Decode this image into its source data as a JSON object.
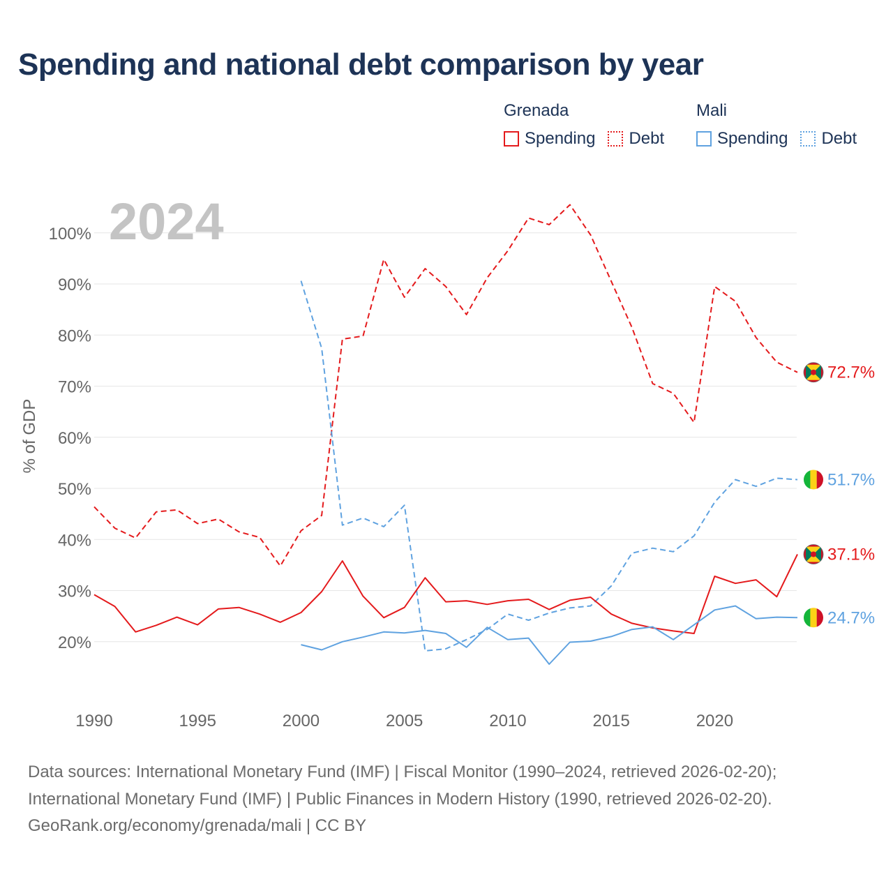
{
  "title": "Spending and national debt comparison by year",
  "legend": {
    "groups": [
      {
        "country": "Grenada",
        "color": "#e41a1c",
        "items": [
          {
            "label": "Spending",
            "style": "solid"
          },
          {
            "label": "Debt",
            "style": "dotted"
          }
        ]
      },
      {
        "country": "Mali",
        "color": "#5fa2e0",
        "items": [
          {
            "label": "Spending",
            "style": "solid"
          },
          {
            "label": "Debt",
            "style": "dotted"
          }
        ]
      }
    ]
  },
  "year_watermark": "2024",
  "footer": {
    "line1": "Data sources: International Monetary Fund (IMF) | Fiscal Monitor (1990–2024, retrieved 2026-02-20);",
    "line2": "International Monetary Fund (IMF) | Public Finances in Modern History (1990, retrieved 2026-02-20).",
    "line3": "GeoRank.org/economy/grenada/mali | CC BY"
  },
  "chart_data": {
    "type": "line",
    "title": "Spending and national debt comparison by year",
    "xlabel": "",
    "ylabel": "% of GDP",
    "xlim": [
      1990,
      2024
    ],
    "ylim": [
      10,
      105
    ],
    "x_ticks": [
      1990,
      1995,
      2000,
      2005,
      2010,
      2015,
      2020
    ],
    "y_ticks": [
      20,
      30,
      40,
      50,
      60,
      70,
      80,
      90,
      100
    ],
    "y_tick_labels": [
      "20%",
      "30%",
      "40%",
      "50%",
      "60%",
      "70%",
      "80%",
      "90%",
      "100%"
    ],
    "grid": true,
    "series": [
      {
        "name": "Grenada Debt",
        "country": "Grenada",
        "measure": "Debt",
        "color": "#e41a1c",
        "dash": "dashed",
        "end_label": "72.7%",
        "end_flag": "grenada-flag",
        "points": [
          [
            1990,
            46.4
          ],
          [
            1991,
            42.2
          ],
          [
            1992,
            40.3
          ],
          [
            1993,
            45.4
          ],
          [
            1994,
            45.8
          ],
          [
            1995,
            43.1
          ],
          [
            1996,
            44.0
          ],
          [
            1997,
            41.5
          ],
          [
            1998,
            40.4
          ],
          [
            1999,
            34.8
          ],
          [
            2000,
            41.7
          ],
          [
            2001,
            44.7
          ],
          [
            2002,
            79.2
          ],
          [
            2003,
            79.8
          ],
          [
            2004,
            94.8
          ],
          [
            2005,
            87.4
          ],
          [
            2006,
            93.0
          ],
          [
            2007,
            89.5
          ],
          [
            2008,
            84.0
          ],
          [
            2009,
            91.2
          ],
          [
            2010,
            96.5
          ],
          [
            2011,
            102.9
          ],
          [
            2012,
            101.6
          ],
          [
            2013,
            105.5
          ],
          [
            2014,
            99.6
          ],
          [
            2015,
            90.5
          ],
          [
            2016,
            81.5
          ],
          [
            2017,
            70.5
          ],
          [
            2018,
            68.6
          ],
          [
            2019,
            62.9
          ],
          [
            2020,
            89.5
          ],
          [
            2021,
            86.6
          ],
          [
            2022,
            79.5
          ],
          [
            2023,
            74.7
          ],
          [
            2024,
            72.7
          ]
        ]
      },
      {
        "name": "Mali Debt",
        "country": "Mali",
        "measure": "Debt",
        "color": "#5fa2e0",
        "dash": "dashed",
        "end_label": "51.7%",
        "end_flag": "mali-flag",
        "points": [
          [
            2000,
            90.6
          ],
          [
            2001,
            77.4
          ],
          [
            2002,
            42.8
          ],
          [
            2003,
            44.2
          ],
          [
            2004,
            42.5
          ],
          [
            2005,
            46.7
          ],
          [
            2006,
            18.2
          ],
          [
            2007,
            18.6
          ],
          [
            2008,
            20.4
          ],
          [
            2009,
            22.4
          ],
          [
            2010,
            25.4
          ],
          [
            2011,
            24.2
          ],
          [
            2012,
            25.6
          ],
          [
            2013,
            26.6
          ],
          [
            2014,
            27.0
          ],
          [
            2015,
            30.9
          ],
          [
            2016,
            37.3
          ],
          [
            2017,
            38.3
          ],
          [
            2018,
            37.6
          ],
          [
            2019,
            40.7
          ],
          [
            2020,
            47.3
          ],
          [
            2021,
            51.7
          ],
          [
            2022,
            50.4
          ],
          [
            2023,
            52.0
          ],
          [
            2024,
            51.7
          ]
        ]
      },
      {
        "name": "Grenada Spending",
        "country": "Grenada",
        "measure": "Spending",
        "color": "#e41a1c",
        "dash": "solid",
        "end_label": "37.1%",
        "end_flag": "grenada-flag",
        "points": [
          [
            1990,
            29.2
          ],
          [
            1991,
            26.9
          ],
          [
            1992,
            21.9
          ],
          [
            1993,
            23.2
          ],
          [
            1994,
            24.8
          ],
          [
            1995,
            23.3
          ],
          [
            1996,
            26.4
          ],
          [
            1997,
            26.7
          ],
          [
            1998,
            25.4
          ],
          [
            1999,
            23.8
          ],
          [
            2000,
            25.7
          ],
          [
            2001,
            29.8
          ],
          [
            2002,
            35.8
          ],
          [
            2003,
            28.9
          ],
          [
            2004,
            24.7
          ],
          [
            2005,
            26.7
          ],
          [
            2006,
            32.5
          ],
          [
            2007,
            27.8
          ],
          [
            2008,
            28.0
          ],
          [
            2009,
            27.3
          ],
          [
            2010,
            28.0
          ],
          [
            2011,
            28.3
          ],
          [
            2012,
            26.3
          ],
          [
            2013,
            28.1
          ],
          [
            2014,
            28.7
          ],
          [
            2015,
            25.4
          ],
          [
            2016,
            23.6
          ],
          [
            2017,
            22.7
          ],
          [
            2018,
            22.1
          ],
          [
            2019,
            21.6
          ],
          [
            2020,
            32.8
          ],
          [
            2021,
            31.4
          ],
          [
            2022,
            32.1
          ],
          [
            2023,
            28.8
          ],
          [
            2024,
            37.1
          ]
        ]
      },
      {
        "name": "Mali Spending",
        "country": "Mali",
        "measure": "Spending",
        "color": "#5fa2e0",
        "dash": "solid",
        "end_label": "24.7%",
        "end_flag": "mali-flag",
        "points": [
          [
            2000,
            19.4
          ],
          [
            2001,
            18.4
          ],
          [
            2002,
            20.0
          ],
          [
            2003,
            20.9
          ],
          [
            2004,
            21.9
          ],
          [
            2005,
            21.7
          ],
          [
            2006,
            22.2
          ],
          [
            2007,
            21.6
          ],
          [
            2008,
            18.9
          ],
          [
            2009,
            22.8
          ],
          [
            2010,
            20.4
          ],
          [
            2011,
            20.7
          ],
          [
            2012,
            15.6
          ],
          [
            2013,
            19.9
          ],
          [
            2014,
            20.1
          ],
          [
            2015,
            21.0
          ],
          [
            2016,
            22.4
          ],
          [
            2017,
            22.9
          ],
          [
            2018,
            20.4
          ],
          [
            2019,
            23.3
          ],
          [
            2020,
            26.2
          ],
          [
            2021,
            27.0
          ],
          [
            2022,
            24.5
          ],
          [
            2023,
            24.8
          ],
          [
            2024,
            24.7
          ]
        ]
      }
    ]
  }
}
